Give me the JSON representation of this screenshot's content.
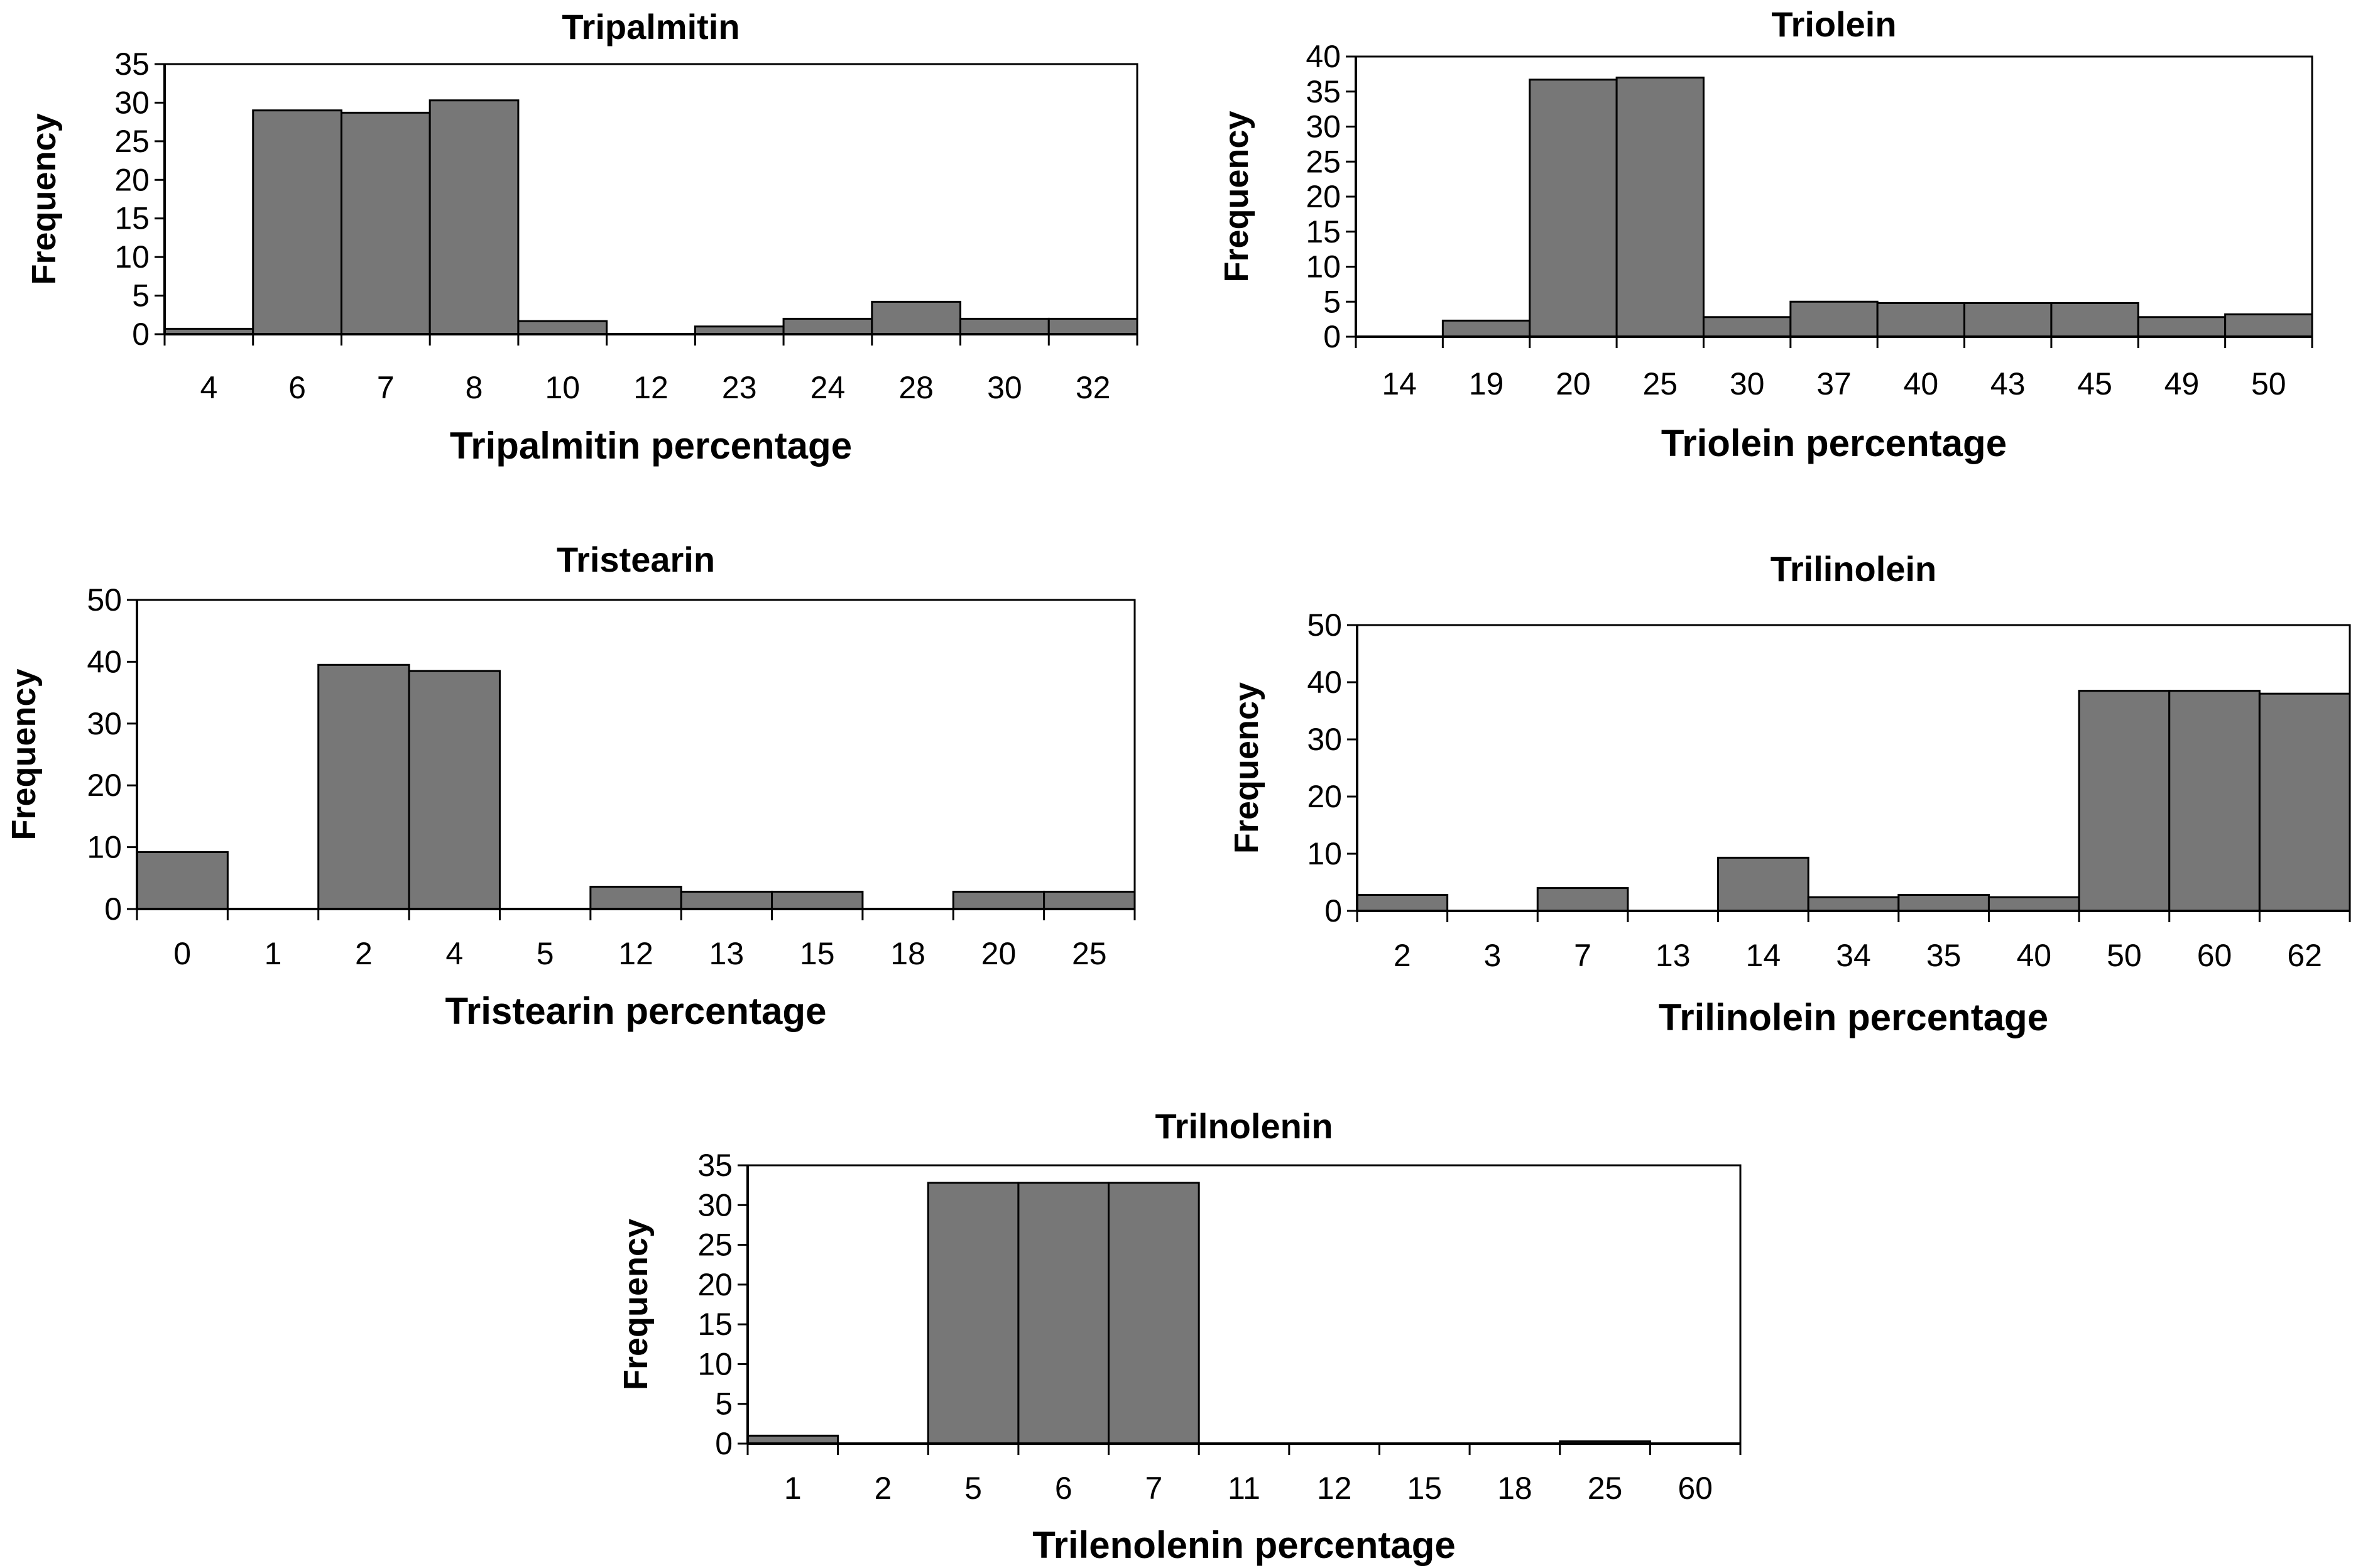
{
  "chart_data": [
    {
      "type": "bar",
      "title": "Tripalmitin",
      "xlabel": "Tripalmitin percentage",
      "ylabel": "Frequency",
      "ylim": [
        0,
        35
      ],
      "yticks": [
        0,
        5,
        10,
        15,
        20,
        25,
        30,
        35
      ],
      "categories": [
        "4",
        "6",
        "7",
        "8",
        "10",
        "12",
        "23",
        "24",
        "28",
        "30",
        "32"
      ],
      "values": [
        0.7,
        29,
        28.7,
        30.3,
        1.7,
        0,
        1,
        2,
        4.2,
        2,
        2
      ]
    },
    {
      "type": "bar",
      "title": "Triolein",
      "xlabel": "Triolein percentage",
      "ylabel": "Frequency",
      "ylim": [
        0,
        40
      ],
      "yticks": [
        0,
        5,
        10,
        15,
        20,
        25,
        30,
        35,
        40
      ],
      "categories": [
        "14",
        "19",
        "20",
        "25",
        "30",
        "37",
        "40",
        "43",
        "45",
        "49",
        "50"
      ],
      "values": [
        0,
        2.3,
        36.7,
        37,
        2.8,
        5,
        4.8,
        4.8,
        4.8,
        2.8,
        3.2
      ]
    },
    {
      "type": "bar",
      "title": "Tristearin",
      "xlabel": "Tristearin percentage",
      "ylabel": "Frequency",
      "ylim": [
        0,
        50
      ],
      "yticks": [
        0,
        10,
        20,
        30,
        40,
        50
      ],
      "categories": [
        "0",
        "1",
        "2",
        "4",
        "5",
        "12",
        "13",
        "15",
        "18",
        "20",
        "25"
      ],
      "values": [
        9.2,
        0,
        39.5,
        38.5,
        0,
        3.6,
        2.8,
        2.8,
        0,
        2.8,
        2.8
      ]
    },
    {
      "type": "bar",
      "title": "Trilinolein",
      "xlabel": "Trilinolein percentage",
      "ylabel": "Frequency",
      "ylim": [
        0,
        50
      ],
      "yticks": [
        0,
        10,
        20,
        30,
        40,
        50
      ],
      "categories": [
        "2",
        "3",
        "7",
        "13",
        "14",
        "34",
        "35",
        "40",
        "50",
        "60",
        "62"
      ],
      "values": [
        2.8,
        0,
        4,
        0,
        9.3,
        2.4,
        2.8,
        2.4,
        38.5,
        38.5,
        38
      ]
    },
    {
      "type": "bar",
      "title": "Trilnolenin",
      "xlabel": "Trilenolenin percentage",
      "ylabel": "Frequency",
      "ylim": [
        0,
        35
      ],
      "yticks": [
        0,
        5,
        10,
        15,
        20,
        25,
        30,
        35
      ],
      "categories": [
        "1",
        "2",
        "5",
        "6",
        "7",
        "11",
        "12",
        "15",
        "18",
        "25",
        "60"
      ],
      "values": [
        1,
        0,
        32.8,
        32.8,
        32.8,
        0,
        0,
        0,
        0,
        0.3,
        0
      ]
    }
  ]
}
